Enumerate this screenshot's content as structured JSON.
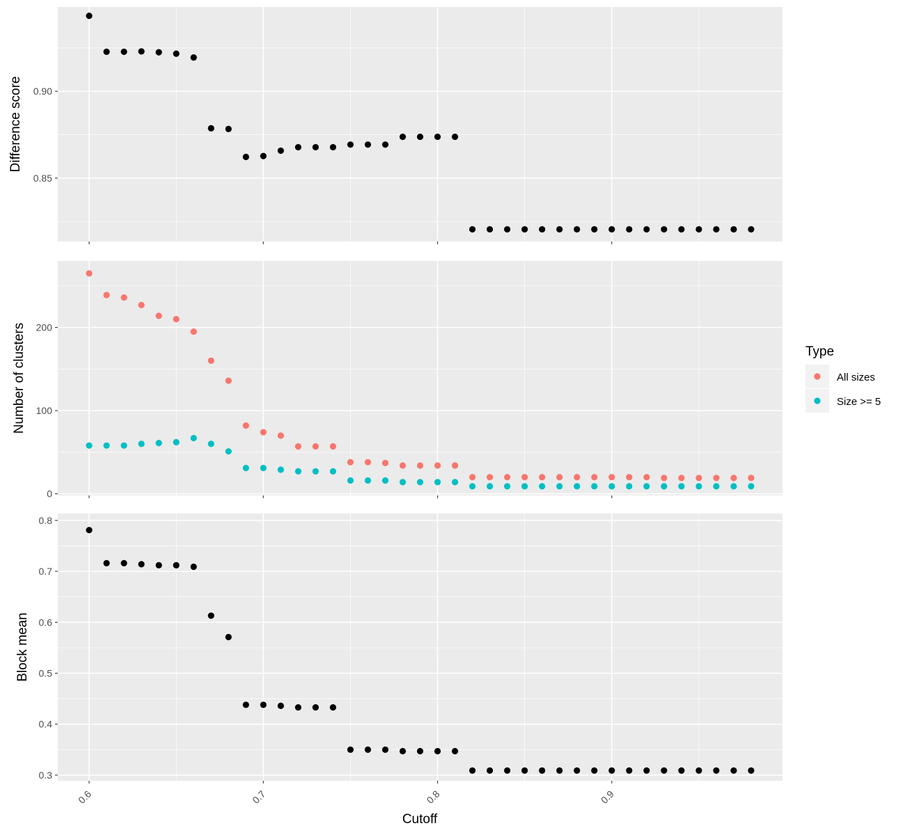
{
  "chart_data": {
    "type": "scatter",
    "x_title": "Cutoff",
    "x_ticks": [
      0.6,
      0.7,
      0.8,
      0.9
    ],
    "x_tick_labels": [
      "0.6",
      "0.7",
      "0.8",
      "0.9"
    ],
    "xlim": [
      0.582,
      0.998
    ],
    "x": [
      0.6,
      0.61,
      0.62,
      0.63,
      0.64,
      0.65,
      0.66,
      0.67,
      0.68,
      0.69,
      0.7,
      0.71,
      0.72,
      0.73,
      0.74,
      0.75,
      0.76,
      0.77,
      0.78,
      0.79,
      0.8,
      0.81,
      0.82,
      0.83,
      0.84,
      0.85,
      0.86,
      0.87,
      0.88,
      0.89,
      0.9,
      0.91,
      0.92,
      0.93,
      0.94,
      0.95,
      0.96,
      0.97,
      0.98
    ],
    "panels": [
      {
        "ylabel": "Difference score",
        "ylim": [
          0.8135,
          0.9486
        ],
        "y_ticks": [
          0.85,
          0.9
        ],
        "y_tick_labels": [
          "0.85",
          "0.90"
        ],
        "y_minor": [
          0.825,
          0.875,
          0.925
        ],
        "series": [
          {
            "color": "#000000",
            "values": [
              0.9435,
              0.9228,
              0.9228,
              0.923,
              0.9225,
              0.9217,
              0.9195,
              0.8787,
              0.8783,
              0.8622,
              0.8627,
              0.8658,
              0.8678,
              0.8678,
              0.8678,
              0.8693,
              0.8693,
              0.8693,
              0.8738,
              0.8738,
              0.8738,
              0.8738,
              0.8205,
              0.8205,
              0.8205,
              0.8205,
              0.8205,
              0.8205,
              0.8205,
              0.8205,
              0.8205,
              0.8205,
              0.8205,
              0.8205,
              0.8205,
              0.8205,
              0.8205,
              0.8205,
              0.8205
            ]
          }
        ]
      },
      {
        "ylabel": "Number of clusters",
        "ylim": [
          -2,
          280
        ],
        "y_ticks": [
          0,
          100,
          200
        ],
        "y_tick_labels": [
          "0",
          "100",
          "200"
        ],
        "y_minor": [
          50,
          150,
          250
        ],
        "series": [
          {
            "name": "All sizes",
            "color": "#F8766D",
            "values": [
              265,
              239,
              236,
              227,
              214,
              210,
              195,
              160,
              136,
              82,
              74,
              70,
              57,
              57,
              57,
              38,
              38,
              37,
              34,
              34,
              34,
              34,
              20,
              20,
              20,
              20,
              20,
              20,
              20,
              20,
              20,
              20,
              20,
              19,
              19,
              19,
              19,
              19,
              19
            ]
          },
          {
            "name": "Size >= 5",
            "color": "#00BFC4",
            "values": [
              58,
              58,
              58,
              60,
              61,
              62,
              67,
              60,
              51,
              31,
              31,
              29,
              27,
              27,
              27,
              16,
              16,
              16,
              14,
              14,
              14,
              14,
              9,
              9,
              9,
              9,
              9,
              9,
              9,
              9,
              9,
              9,
              9,
              9,
              9,
              9,
              9,
              9,
              9
            ]
          }
        ]
      },
      {
        "ylabel": "Block mean",
        "ylim": [
          0.289,
          0.8135
        ],
        "y_ticks": [
          0.3,
          0.4,
          0.5,
          0.6,
          0.7,
          0.8
        ],
        "y_tick_labels": [
          "0.3",
          "0.4",
          "0.5",
          "0.6",
          "0.7",
          "0.8"
        ],
        "y_minor": [
          0.35,
          0.45,
          0.55,
          0.65,
          0.75
        ],
        "series": [
          {
            "color": "#000000",
            "values": [
              0.781,
              0.716,
              0.716,
              0.714,
              0.712,
              0.712,
              0.709,
              0.613,
              0.571,
              0.438,
              0.438,
              0.436,
              0.433,
              0.433,
              0.433,
              0.35,
              0.35,
              0.35,
              0.347,
              0.347,
              0.347,
              0.347,
              0.309,
              0.309,
              0.309,
              0.309,
              0.309,
              0.309,
              0.309,
              0.309,
              0.309,
              0.309,
              0.309,
              0.309,
              0.309,
              0.309,
              0.309,
              0.309,
              0.309
            ]
          }
        ]
      }
    ],
    "legend": {
      "title": "Type",
      "placement": "right",
      "items": [
        {
          "label": "All sizes",
          "color": "#F8766D"
        },
        {
          "label": "Size >= 5",
          "color": "#00BFC4"
        }
      ]
    },
    "grid": true,
    "panel_background": "#EBEBEB"
  }
}
